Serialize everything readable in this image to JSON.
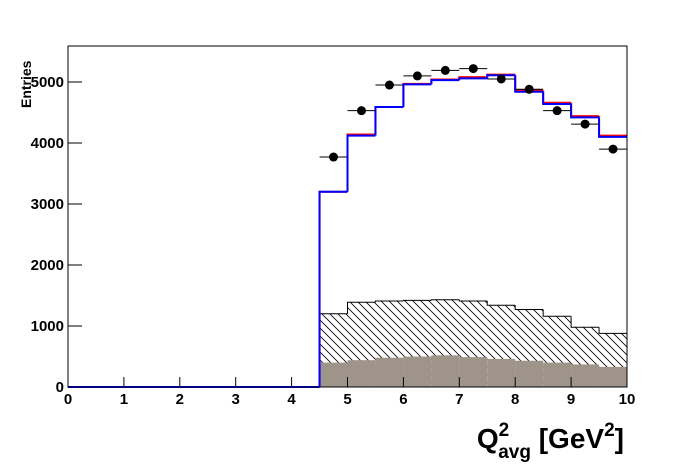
{
  "chart_data": {
    "type": "histogram",
    "ylabel": "Entries",
    "xlabel": {
      "base": "Q",
      "sup": "2",
      "sub": "avg",
      "unit": " [GeV",
      "unit_sup": "2",
      "close": "]"
    },
    "bins": [
      0,
      0.5,
      1,
      1.5,
      2,
      2.5,
      3,
      3.5,
      4,
      4.5,
      5,
      5.5,
      6,
      6.5,
      7,
      7.5,
      8,
      8.5,
      9,
      9.5,
      10
    ],
    "xlim": [
      0,
      10
    ],
    "xticks": [
      0,
      1,
      2,
      3,
      4,
      5,
      6,
      7,
      8,
      9,
      10
    ],
    "ylim": [
      0,
      5590
    ],
    "yticks": [
      0,
      1000,
      2000,
      3000,
      4000,
      5000
    ],
    "series": [
      {
        "style": "hatched",
        "color": "#000000",
        "values": [
          0,
          0,
          0,
          0,
          0,
          0,
          0,
          0,
          0,
          1200,
          1390,
          1410,
          1420,
          1430,
          1410,
          1340,
          1270,
          1160,
          980,
          880
        ]
      },
      {
        "style": "filled",
        "color": "#9e948a",
        "values": [
          0,
          0,
          0,
          0,
          0,
          0,
          0,
          0,
          0,
          400,
          440,
          480,
          500,
          520,
          490,
          460,
          430,
          400,
          370,
          330
        ]
      },
      {
        "style": "step",
        "color": "#ff0000",
        "values": [
          0,
          0,
          0,
          0,
          0,
          0,
          0,
          0,
          0,
          3200,
          4140,
          4590,
          4970,
          5040,
          5080,
          5120,
          4860,
          4660,
          4440,
          4120
        ]
      },
      {
        "style": "step",
        "color": "#0000ff",
        "values": [
          0,
          0,
          0,
          0,
          0,
          0,
          0,
          0,
          0,
          3200,
          4120,
          4590,
          4960,
          5030,
          5060,
          5110,
          4840,
          4640,
          4420,
          4100
        ]
      }
    ],
    "points": {
      "color": "#000000",
      "xerr": 0.25,
      "x": [
        4.75,
        5.25,
        5.75,
        6.25,
        6.75,
        7.25,
        7.75,
        8.25,
        8.75,
        9.25,
        9.75
      ],
      "y": [
        3770,
        4530,
        4950,
        5100,
        5190,
        5220,
        5050,
        4880,
        4530,
        4310,
        3900
      ]
    }
  }
}
